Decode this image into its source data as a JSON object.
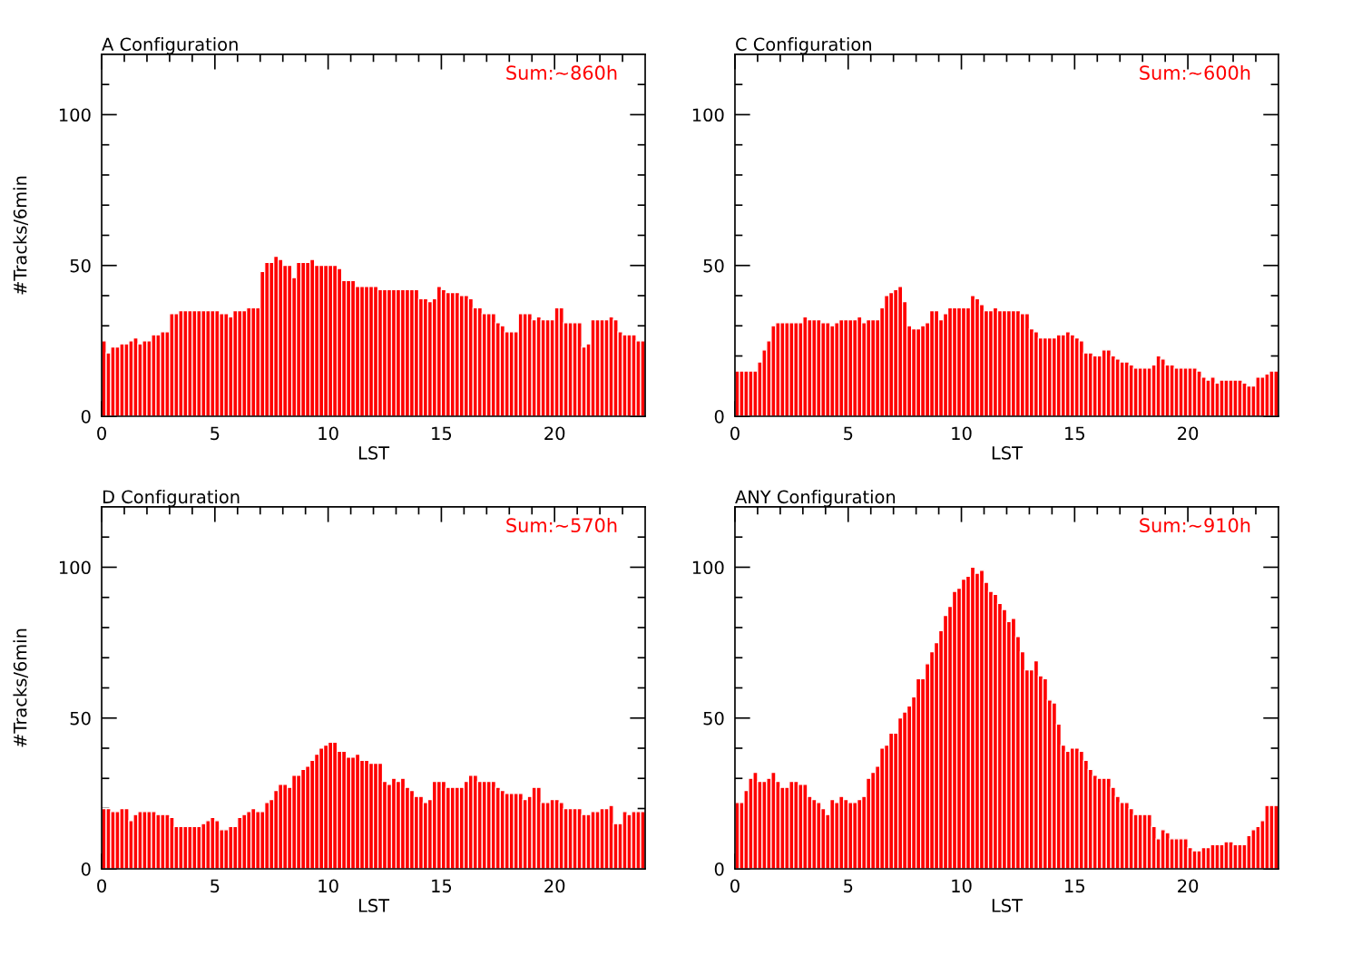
{
  "chart_data": [
    {
      "type": "histogram",
      "title": "A Configuration",
      "xlabel": "LST",
      "ylabel": "#Tracks/6min",
      "annotations": [
        "Sum:~860h"
      ],
      "color": "#ff0000",
      "bins": [
        0,
        0.2,
        0.4,
        0.6,
        0.8,
        1,
        1.2,
        1.4,
        1.6,
        1.8,
        2,
        2.2,
        2.4,
        2.6,
        2.8,
        3,
        3.2,
        3.4,
        3.6,
        3.8,
        4,
        4.2,
        4.4,
        4.6,
        4.8,
        5,
        5.2,
        5.4,
        5.6,
        5.8,
        6,
        6.2,
        6.4,
        6.6,
        6.8,
        7,
        7.2,
        7.4,
        7.6,
        7.8,
        8,
        8.2,
        8.4,
        8.6,
        8.8,
        9,
        9.2,
        9.4,
        9.6,
        9.8,
        10,
        10.2,
        10.4,
        10.6,
        10.8,
        11,
        11.2,
        11.4,
        11.6,
        11.8,
        12,
        12.2,
        12.4,
        12.6,
        12.8,
        13,
        13.2,
        13.4,
        13.6,
        13.8,
        14,
        14.2,
        14.4,
        14.6,
        14.8,
        15,
        15.2,
        15.4,
        15.6,
        15.8,
        16,
        16.2,
        16.4,
        16.6,
        16.8,
        17,
        17.2,
        17.4,
        17.6,
        17.8,
        18,
        18.2,
        18.4,
        18.6,
        18.8,
        19,
        19.2,
        19.4,
        19.6,
        19.8,
        20,
        20.2,
        20.4,
        20.6,
        20.8,
        21,
        21.2,
        21.4,
        21.6,
        21.8,
        22,
        22.2,
        22.4,
        22.6,
        22.8,
        23,
        23.2,
        23.4,
        23.6,
        23.8,
        24
      ],
      "values": [
        25,
        21,
        23,
        23,
        24,
        24,
        25,
        26,
        24,
        25,
        25,
        27,
        27,
        28,
        28,
        34,
        34,
        35,
        35,
        35,
        35,
        35,
        35,
        35,
        35,
        35,
        34,
        34,
        33,
        35,
        35,
        35,
        36,
        36,
        36,
        48,
        51,
        51,
        53,
        52,
        50,
        50,
        46,
        51,
        51,
        51,
        52,
        50,
        50,
        50,
        50,
        50,
        49,
        45,
        45,
        45,
        43,
        43,
        43,
        43,
        43,
        42,
        42,
        42,
        42,
        42,
        42,
        42,
        42,
        42,
        39,
        39,
        38,
        39,
        43,
        42,
        41,
        41,
        41,
        40,
        40,
        39,
        36,
        36,
        34,
        34,
        34,
        31,
        30,
        28,
        28,
        28,
        34,
        34,
        34,
        32,
        33,
        32,
        32,
        32,
        36,
        36,
        31,
        31,
        31,
        31,
        23,
        24,
        32,
        32,
        32,
        32,
        33,
        32,
        28,
        27,
        27,
        27,
        25,
        25
      ],
      "xlim": [
        0,
        24
      ],
      "ylim": [
        0,
        120
      ],
      "xticks": [
        0,
        {
          "value": 1,
          "label": null
        },
        {
          "value": 2,
          "label": null
        },
        {
          "value": 3,
          "label": null
        },
        {
          "value": 4,
          "label": null
        },
        5,
        {
          "value": 6,
          "label": null
        },
        {
          "value": 7,
          "label": null
        },
        {
          "value": 8,
          "label": null
        },
        {
          "value": 9,
          "label": null
        },
        10,
        {
          "value": 11,
          "label": null
        },
        {
          "value": 12,
          "label": null
        },
        {
          "value": 13,
          "label": null
        },
        {
          "value": 14,
          "label": null
        },
        15,
        {
          "value": 16,
          "label": null
        },
        {
          "value": 17,
          "label": null
        },
        {
          "value": 18,
          "label": null
        },
        {
          "value": 19,
          "label": null
        },
        20,
        {
          "value": 21,
          "label": null
        },
        {
          "value": 22,
          "label": null
        },
        {
          "value": 23,
          "label": null
        }
      ],
      "yticks": [
        0,
        {
          "value": 10,
          "label": null
        },
        {
          "value": 20,
          "label": null
        },
        {
          "value": 30,
          "label": null
        },
        {
          "value": 40,
          "label": null
        },
        50,
        {
          "value": 60,
          "label": null
        },
        {
          "value": 70,
          "label": null
        },
        {
          "value": 80,
          "label": null
        },
        {
          "value": 90,
          "label": null
        },
        100,
        {
          "value": 110,
          "label": null
        }
      ],
      "grid": false
    },
    {
      "type": "histogram",
      "title": "C Configuration",
      "xlabel": "LST",
      "annotations": [
        "Sum:~600h"
      ],
      "color": "#ff0000",
      "bins": [
        0,
        0.2,
        0.4,
        0.6,
        0.8,
        1,
        1.2,
        1.4,
        1.6,
        1.8,
        2,
        2.2,
        2.4,
        2.6,
        2.8,
        3,
        3.2,
        3.4,
        3.6,
        3.8,
        4,
        4.2,
        4.4,
        4.6,
        4.8,
        5,
        5.2,
        5.4,
        5.6,
        5.8,
        6,
        6.2,
        6.4,
        6.6,
        6.8,
        7,
        7.2,
        7.4,
        7.6,
        7.8,
        8,
        8.2,
        8.4,
        8.6,
        8.8,
        9,
        9.2,
        9.4,
        9.6,
        9.8,
        10,
        10.2,
        10.4,
        10.6,
        10.8,
        11,
        11.2,
        11.4,
        11.6,
        11.8,
        12,
        12.2,
        12.4,
        12.6,
        12.8,
        13,
        13.2,
        13.4,
        13.6,
        13.8,
        14,
        14.2,
        14.4,
        14.6,
        14.8,
        15,
        15.2,
        15.4,
        15.6,
        15.8,
        16,
        16.2,
        16.4,
        16.6,
        16.8,
        17,
        17.2,
        17.4,
        17.6,
        17.8,
        18,
        18.2,
        18.4,
        18.6,
        18.8,
        19,
        19.2,
        19.4,
        19.6,
        19.8,
        20,
        20.2,
        20.4,
        20.6,
        20.8,
        21,
        21.2,
        21.4,
        21.6,
        21.8,
        22,
        22.2,
        22.4,
        22.6,
        22.8,
        23,
        23.2,
        23.4,
        23.6,
        23.8,
        24
      ],
      "values": [
        15,
        15,
        15,
        15,
        15,
        18,
        22,
        25,
        30,
        31,
        31,
        31,
        31,
        31,
        31,
        33,
        32,
        32,
        32,
        31,
        31,
        30,
        31,
        32,
        32,
        32,
        32,
        33,
        31,
        32,
        32,
        32,
        36,
        40,
        41,
        42,
        43,
        38,
        30,
        29,
        29,
        30,
        31,
        35,
        35,
        32,
        34,
        36,
        36,
        36,
        36,
        36,
        40,
        39,
        37,
        35,
        35,
        36,
        35,
        35,
        35,
        35,
        35,
        34,
        34,
        29,
        28,
        26,
        26,
        26,
        26,
        27,
        27,
        28,
        27,
        26,
        25,
        21,
        21,
        20,
        20,
        22,
        22,
        20,
        19,
        18,
        18,
        17,
        16,
        16,
        16,
        16,
        17,
        20,
        19,
        17,
        17,
        16,
        16,
        16,
        16,
        16,
        15,
        13,
        12,
        13,
        11,
        12,
        12,
        12,
        12,
        12,
        11,
        10,
        10,
        13,
        13,
        14,
        15,
        15
      ],
      "xlim": [
        0,
        24
      ],
      "ylim": [
        0,
        120
      ],
      "xticks": [
        0,
        {
          "value": 1,
          "label": null
        },
        {
          "value": 2,
          "label": null
        },
        {
          "value": 3,
          "label": null
        },
        {
          "value": 4,
          "label": null
        },
        5,
        {
          "value": 6,
          "label": null
        },
        {
          "value": 7,
          "label": null
        },
        {
          "value": 8,
          "label": null
        },
        {
          "value": 9,
          "label": null
        },
        10,
        {
          "value": 11,
          "label": null
        },
        {
          "value": 12,
          "label": null
        },
        {
          "value": 13,
          "label": null
        },
        {
          "value": 14,
          "label": null
        },
        15,
        {
          "value": 16,
          "label": null
        },
        {
          "value": 17,
          "label": null
        },
        {
          "value": 18,
          "label": null
        },
        {
          "value": 19,
          "label": null
        },
        20,
        {
          "value": 21,
          "label": null
        },
        {
          "value": 22,
          "label": null
        },
        {
          "value": 23,
          "label": null
        }
      ],
      "yticks": [
        0,
        {
          "value": 10,
          "label": null
        },
        {
          "value": 20,
          "label": null
        },
        {
          "value": 30,
          "label": null
        },
        {
          "value": 40,
          "label": null
        },
        50,
        {
          "value": 60,
          "label": null
        },
        {
          "value": 70,
          "label": null
        },
        {
          "value": 80,
          "label": null
        },
        {
          "value": 90,
          "label": null
        },
        100,
        {
          "value": 110,
          "label": null
        }
      ],
      "grid": false
    },
    {
      "type": "histogram",
      "title": "D Configuration",
      "xlabel": "LST",
      "ylabel": "#Tracks/6min",
      "annotations": [
        "Sum:~570h"
      ],
      "color": "#ff0000",
      "bins": [
        0,
        0.2,
        0.4,
        0.6,
        0.8,
        1,
        1.2,
        1.4,
        1.6,
        1.8,
        2,
        2.2,
        2.4,
        2.6,
        2.8,
        3,
        3.2,
        3.4,
        3.6,
        3.8,
        4,
        4.2,
        4.4,
        4.6,
        4.8,
        5,
        5.2,
        5.4,
        5.6,
        5.8,
        6,
        6.2,
        6.4,
        6.6,
        6.8,
        7,
        7.2,
        7.4,
        7.6,
        7.8,
        8,
        8.2,
        8.4,
        8.6,
        8.8,
        9,
        9.2,
        9.4,
        9.6,
        9.8,
        10,
        10.2,
        10.4,
        10.6,
        10.8,
        11,
        11.2,
        11.4,
        11.6,
        11.8,
        12,
        12.2,
        12.4,
        12.6,
        12.8,
        13,
        13.2,
        13.4,
        13.6,
        13.8,
        14,
        14.2,
        14.4,
        14.6,
        14.8,
        15,
        15.2,
        15.4,
        15.6,
        15.8,
        16,
        16.2,
        16.4,
        16.6,
        16.8,
        17,
        17.2,
        17.4,
        17.6,
        17.8,
        18,
        18.2,
        18.4,
        18.6,
        18.8,
        19,
        19.2,
        19.4,
        19.6,
        19.8,
        20,
        20.2,
        20.4,
        20.6,
        20.8,
        21,
        21.2,
        21.4,
        21.6,
        21.8,
        22,
        22.2,
        22.4,
        22.6,
        22.8,
        23,
        23.2,
        23.4,
        23.6,
        23.8,
        24
      ],
      "values": [
        20,
        20,
        19,
        19,
        20,
        20,
        16,
        18,
        19,
        19,
        19,
        19,
        18,
        18,
        18,
        17,
        14,
        14,
        14,
        14,
        14,
        14,
        15,
        16,
        17,
        16,
        13,
        13,
        14,
        14,
        17,
        18,
        19,
        20,
        19,
        19,
        22,
        23,
        26,
        28,
        28,
        27,
        31,
        31,
        33,
        34,
        36,
        38,
        40,
        41,
        42,
        42,
        39,
        39,
        37,
        37,
        38,
        36,
        36,
        35,
        35,
        35,
        29,
        28,
        30,
        29,
        30,
        27,
        26,
        24,
        24,
        22,
        23,
        29,
        29,
        29,
        27,
        27,
        27,
        27,
        29,
        31,
        31,
        29,
        29,
        29,
        29,
        27,
        26,
        25,
        25,
        25,
        25,
        23,
        24,
        27,
        27,
        22,
        22,
        23,
        23,
        22,
        20,
        20,
        20,
        20,
        18,
        18,
        19,
        19,
        20,
        20,
        21,
        15,
        15,
        19,
        18,
        19,
        19,
        19
      ],
      "xlim": [
        0,
        24
      ],
      "ylim": [
        0,
        120
      ],
      "xticks": [
        0,
        {
          "value": 1,
          "label": null
        },
        {
          "value": 2,
          "label": null
        },
        {
          "value": 3,
          "label": null
        },
        {
          "value": 4,
          "label": null
        },
        5,
        {
          "value": 6,
          "label": null
        },
        {
          "value": 7,
          "label": null
        },
        {
          "value": 8,
          "label": null
        },
        {
          "value": 9,
          "label": null
        },
        10,
        {
          "value": 11,
          "label": null
        },
        {
          "value": 12,
          "label": null
        },
        {
          "value": 13,
          "label": null
        },
        {
          "value": 14,
          "label": null
        },
        15,
        {
          "value": 16,
          "label": null
        },
        {
          "value": 17,
          "label": null
        },
        {
          "value": 18,
          "label": null
        },
        {
          "value": 19,
          "label": null
        },
        20,
        {
          "value": 21,
          "label": null
        },
        {
          "value": 22,
          "label": null
        },
        {
          "value": 23,
          "label": null
        }
      ],
      "yticks": [
        0,
        {
          "value": 10,
          "label": null
        },
        {
          "value": 20,
          "label": null
        },
        {
          "value": 30,
          "label": null
        },
        {
          "value": 40,
          "label": null
        },
        50,
        {
          "value": 60,
          "label": null
        },
        {
          "value": 70,
          "label": null
        },
        {
          "value": 80,
          "label": null
        },
        {
          "value": 90,
          "label": null
        },
        100,
        {
          "value": 110,
          "label": null
        }
      ],
      "grid": false
    },
    {
      "type": "histogram",
      "title": "ANY Configuration",
      "xlabel": "LST",
      "annotations": [
        "Sum:~910h"
      ],
      "color": "#ff0000",
      "bins": [
        0,
        0.2,
        0.4,
        0.6,
        0.8,
        1,
        1.2,
        1.4,
        1.6,
        1.8,
        2,
        2.2,
        2.4,
        2.6,
        2.8,
        3,
        3.2,
        3.4,
        3.6,
        3.8,
        4,
        4.2,
        4.4,
        4.6,
        4.8,
        5,
        5.2,
        5.4,
        5.6,
        5.8,
        6,
        6.2,
        6.4,
        6.6,
        6.8,
        7,
        7.2,
        7.4,
        7.6,
        7.8,
        8,
        8.2,
        8.4,
        8.6,
        8.8,
        9,
        9.2,
        9.4,
        9.6,
        9.8,
        10,
        10.2,
        10.4,
        10.6,
        10.8,
        11,
        11.2,
        11.4,
        11.6,
        11.8,
        12,
        12.2,
        12.4,
        12.6,
        12.8,
        13,
        13.2,
        13.4,
        13.6,
        13.8,
        14,
        14.2,
        14.4,
        14.6,
        14.8,
        15,
        15.2,
        15.4,
        15.6,
        15.8,
        16,
        16.2,
        16.4,
        16.6,
        16.8,
        17,
        17.2,
        17.4,
        17.6,
        17.8,
        18,
        18.2,
        18.4,
        18.6,
        18.8,
        19,
        19.2,
        19.4,
        19.6,
        19.8,
        20,
        20.2,
        20.4,
        20.6,
        20.8,
        21,
        21.2,
        21.4,
        21.6,
        21.8,
        22,
        22.2,
        22.4,
        22.6,
        22.8,
        23,
        23.2,
        23.4,
        23.6,
        23.8,
        24
      ],
      "values": [
        22,
        22,
        26,
        30,
        32,
        29,
        29,
        30,
        32,
        29,
        27,
        27,
        29,
        29,
        28,
        28,
        24,
        23,
        22,
        20,
        18,
        23,
        22,
        24,
        23,
        22,
        22,
        23,
        24,
        30,
        32,
        34,
        40,
        41,
        45,
        45,
        50,
        52,
        54,
        57,
        63,
        63,
        68,
        72,
        75,
        79,
        84,
        87,
        92,
        93,
        96,
        97,
        100,
        98,
        99,
        95,
        92,
        91,
        88,
        86,
        82,
        83,
        77,
        72,
        66,
        66,
        69,
        64,
        63,
        56,
        55,
        48,
        41,
        39,
        40,
        40,
        39,
        36,
        33,
        31,
        30,
        30,
        30,
        27,
        24,
        22,
        22,
        20,
        18,
        18,
        18,
        18,
        14,
        10,
        13,
        12,
        10,
        10,
        10,
        10,
        7,
        6,
        6,
        7,
        7,
        8,
        8,
        8,
        9,
        9,
        8,
        8,
        8,
        11,
        13,
        14,
        16,
        21,
        21,
        21
      ],
      "xlim": [
        0,
        24
      ],
      "ylim": [
        0,
        120
      ],
      "xticks": [
        0,
        {
          "value": 1,
          "label": null
        },
        {
          "value": 2,
          "label": null
        },
        {
          "value": 3,
          "label": null
        },
        {
          "value": 4,
          "label": null
        },
        5,
        {
          "value": 6,
          "label": null
        },
        {
          "value": 7,
          "label": null
        },
        {
          "value": 8,
          "label": null
        },
        {
          "value": 9,
          "label": null
        },
        10,
        {
          "value": 11,
          "label": null
        },
        {
          "value": 12,
          "label": null
        },
        {
          "value": 13,
          "label": null
        },
        {
          "value": 14,
          "label": null
        },
        15,
        {
          "value": 16,
          "label": null
        },
        {
          "value": 17,
          "label": null
        },
        {
          "value": 18,
          "label": null
        },
        {
          "value": 19,
          "label": null
        },
        20,
        {
          "value": 21,
          "label": null
        },
        {
          "value": 22,
          "label": null
        },
        {
          "value": 23,
          "label": null
        }
      ],
      "yticks": [
        0,
        {
          "value": 10,
          "label": null
        },
        {
          "value": 20,
          "label": null
        },
        {
          "value": 30,
          "label": null
        },
        {
          "value": 40,
          "label": null
        },
        50,
        {
          "value": 60,
          "label": null
        },
        {
          "value": 70,
          "label": null
        },
        {
          "value": 80,
          "label": null
        },
        {
          "value": 90,
          "label": null
        },
        100,
        {
          "value": 110,
          "label": null
        }
      ],
      "grid": false
    }
  ]
}
